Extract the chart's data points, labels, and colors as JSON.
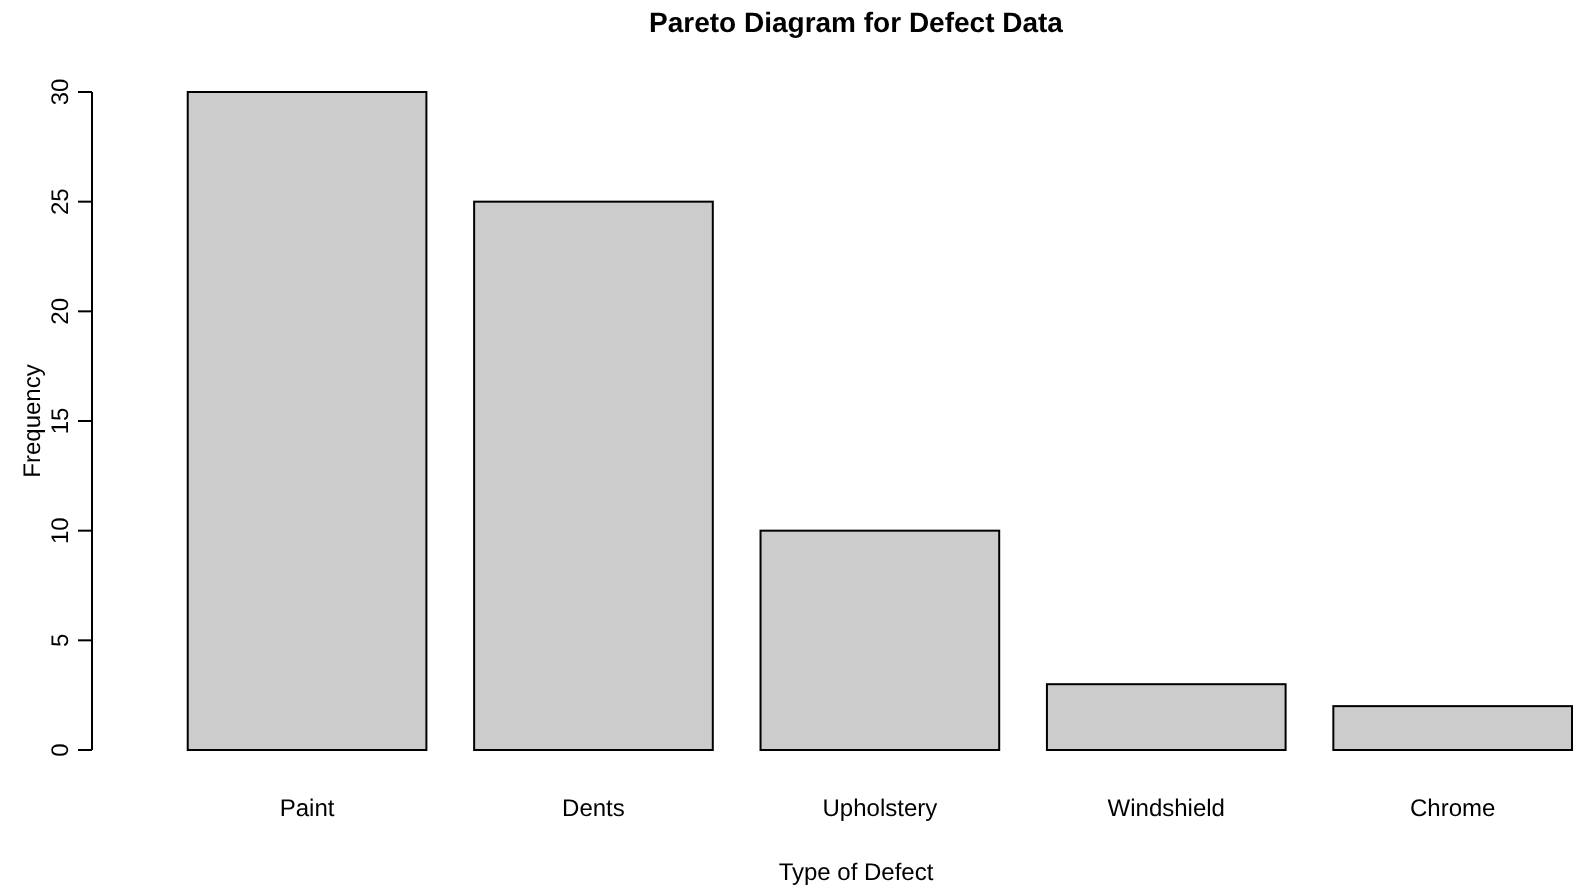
{
  "chart_data": {
    "type": "bar",
    "title": "Pareto Diagram for Defect Data",
    "xlabel": "Type of Defect",
    "ylabel": "Frequency",
    "categories": [
      "Paint",
      "Dents",
      "Upholstery",
      "Windshield",
      "Chrome"
    ],
    "values": [
      30,
      25,
      10,
      3,
      2
    ],
    "color": "#cccccc",
    "ylim": [
      0,
      30
    ],
    "yticks": [
      0,
      5,
      10,
      15,
      20,
      25,
      30
    ]
  }
}
